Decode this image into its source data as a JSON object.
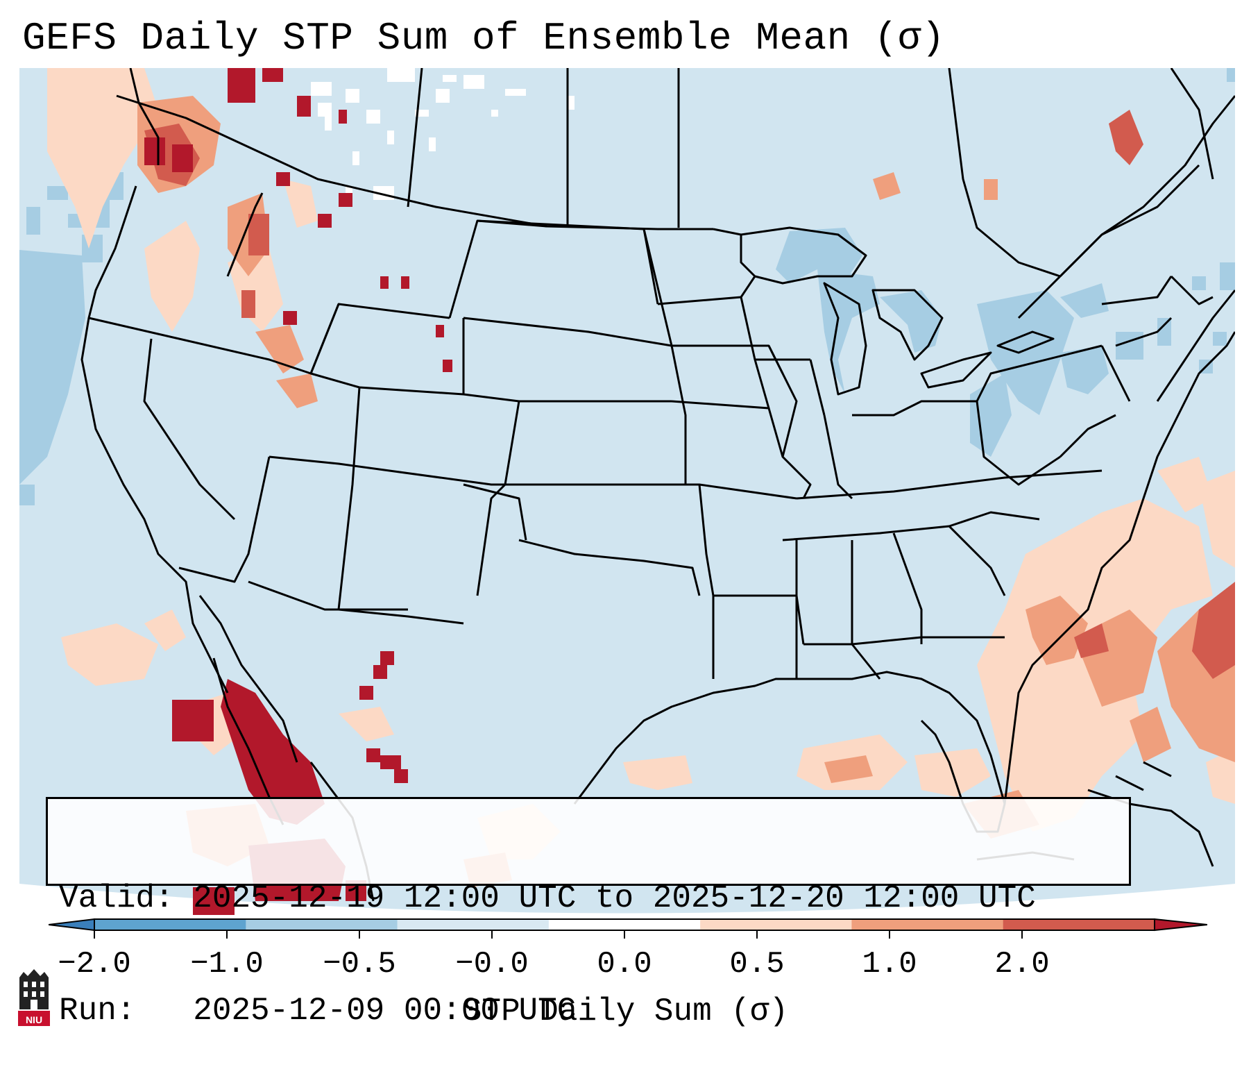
{
  "title": "GEFS Daily STP Sum of Ensemble Mean (σ)",
  "info": {
    "valid": "Valid: 2025-12-19 12:00 UTC to 2025-12-20 12:00 UTC",
    "run": "Run:   2025-12-09 00:00 UTC"
  },
  "colorbar": {
    "label": "STP Daily Sum (σ)",
    "ticks": [
      "−2.0",
      "−1.0",
      "−0.5",
      "−0.0",
      "0.0",
      "0.5",
      "1.0",
      "2.0"
    ],
    "colors": [
      "#3a7fbb",
      "#5ea3cf",
      "#a6cde3",
      "#d9e9f2",
      "#ffffff",
      "#fcd9c5",
      "#ef9f7d",
      "#d25b4e",
      "#b2182b"
    ]
  },
  "colors": {
    "background_anomaly": "#d1e5f0",
    "state_lines": "#000000",
    "info_box_bg": "#ffffff"
  },
  "logo": {
    "text": "NIU"
  }
}
